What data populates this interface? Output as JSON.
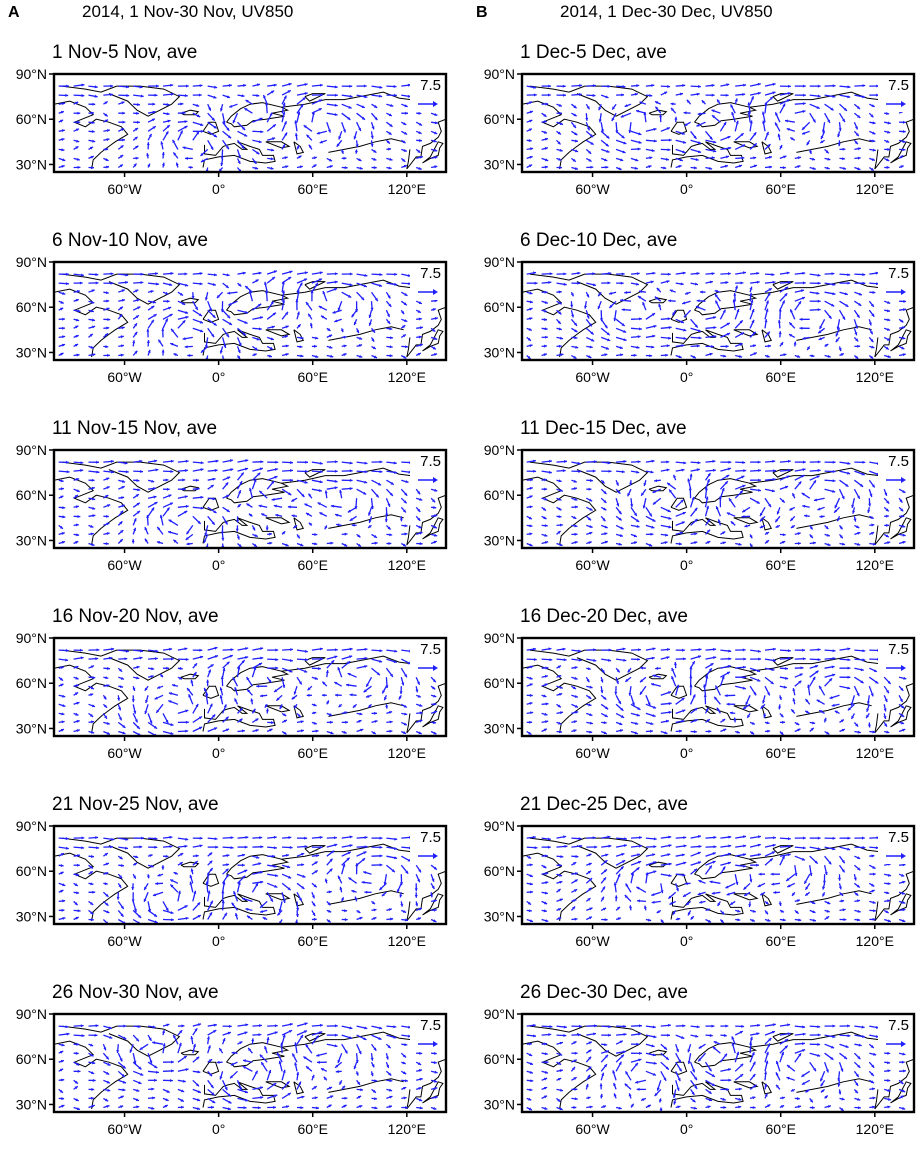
{
  "colors": {
    "vector": "#1f1fff",
    "coast": "#000000",
    "frame": "#000000"
  },
  "columns": [
    {
      "letter": "A",
      "title": "2014, 1 Nov-30 Nov, UV850",
      "panels": [
        {
          "title": "1 Nov-5 Nov, ave",
          "seed": 11
        },
        {
          "title": "6 Nov-10 Nov, ave",
          "seed": 12
        },
        {
          "title": "11 Nov-15 Nov, ave",
          "seed": 13
        },
        {
          "title": "16 Nov-20 Nov, ave",
          "seed": 14
        },
        {
          "title": "21 Nov-25 Nov, ave",
          "seed": 15
        },
        {
          "title": "26 Nov-30 Nov, ave",
          "seed": 16
        }
      ]
    },
    {
      "letter": "B",
      "title": "2014, 1 Dec-30 Dec, UV850",
      "panels": [
        {
          "title": "1 Dec-5 Dec, ave",
          "seed": 21
        },
        {
          "title": "6 Dec-10 Dec, ave",
          "seed": 22
        },
        {
          "title": "11 Dec-15 Dec, ave",
          "seed": 23
        },
        {
          "title": "16 Dec-20 Dec, ave",
          "seed": 24
        },
        {
          "title": "21 Dec-25 Dec, ave",
          "seed": 25
        },
        {
          "title": "26 Dec-30 Dec, ave",
          "seed": 26
        }
      ]
    }
  ],
  "map": {
    "lat_ticks": [
      "90°N",
      "60°N",
      "30°N"
    ],
    "lat_values": [
      90,
      60,
      30
    ],
    "lon_ticks": [
      "60°W",
      "0°",
      "60°E",
      "120°E"
    ],
    "lon_values": [
      -60,
      0,
      60,
      120
    ],
    "lon_range": [
      -105,
      145
    ],
    "lat_range": [
      25,
      90
    ],
    "reference_vector": "7.5"
  }
}
